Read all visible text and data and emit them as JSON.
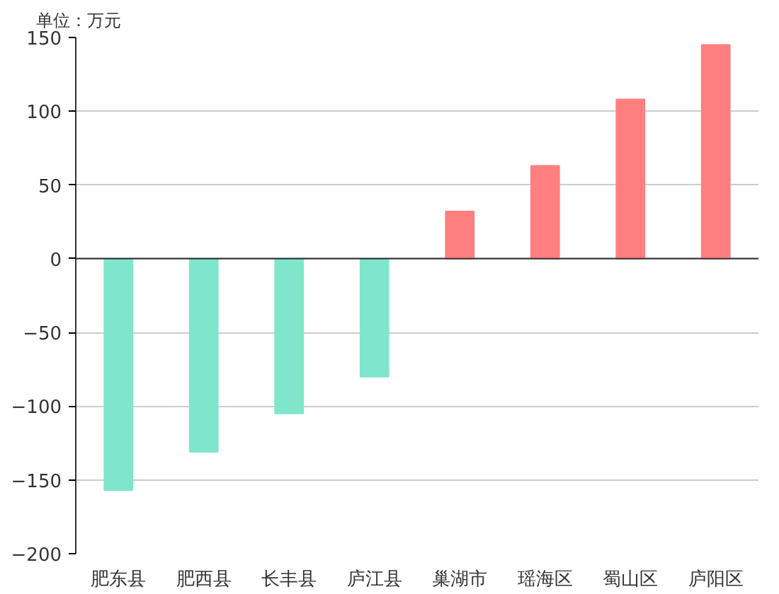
{
  "chart_data": {
    "type": "bar",
    "ylabel": "单位：万元",
    "categories": [
      "肥东县",
      "肥西县",
      "长丰县",
      "庐江县",
      "巢湖市",
      "瑶海区",
      "蜀山区",
      "庐阳区"
    ],
    "values": [
      -157,
      -131,
      -105,
      -80,
      32,
      63,
      108,
      145
    ],
    "colors": [
      "#7fe6cc",
      "#7fe6cc",
      "#7fe6cc",
      "#7fe6cc",
      "#ff7f7f",
      "#ff7f7f",
      "#ff7f7f",
      "#ff7f7f"
    ],
    "ylim": [
      -200,
      150
    ],
    "yticks": [
      -200,
      -150,
      -100,
      -50,
      0,
      50,
      100,
      150
    ],
    "grid": "y"
  }
}
